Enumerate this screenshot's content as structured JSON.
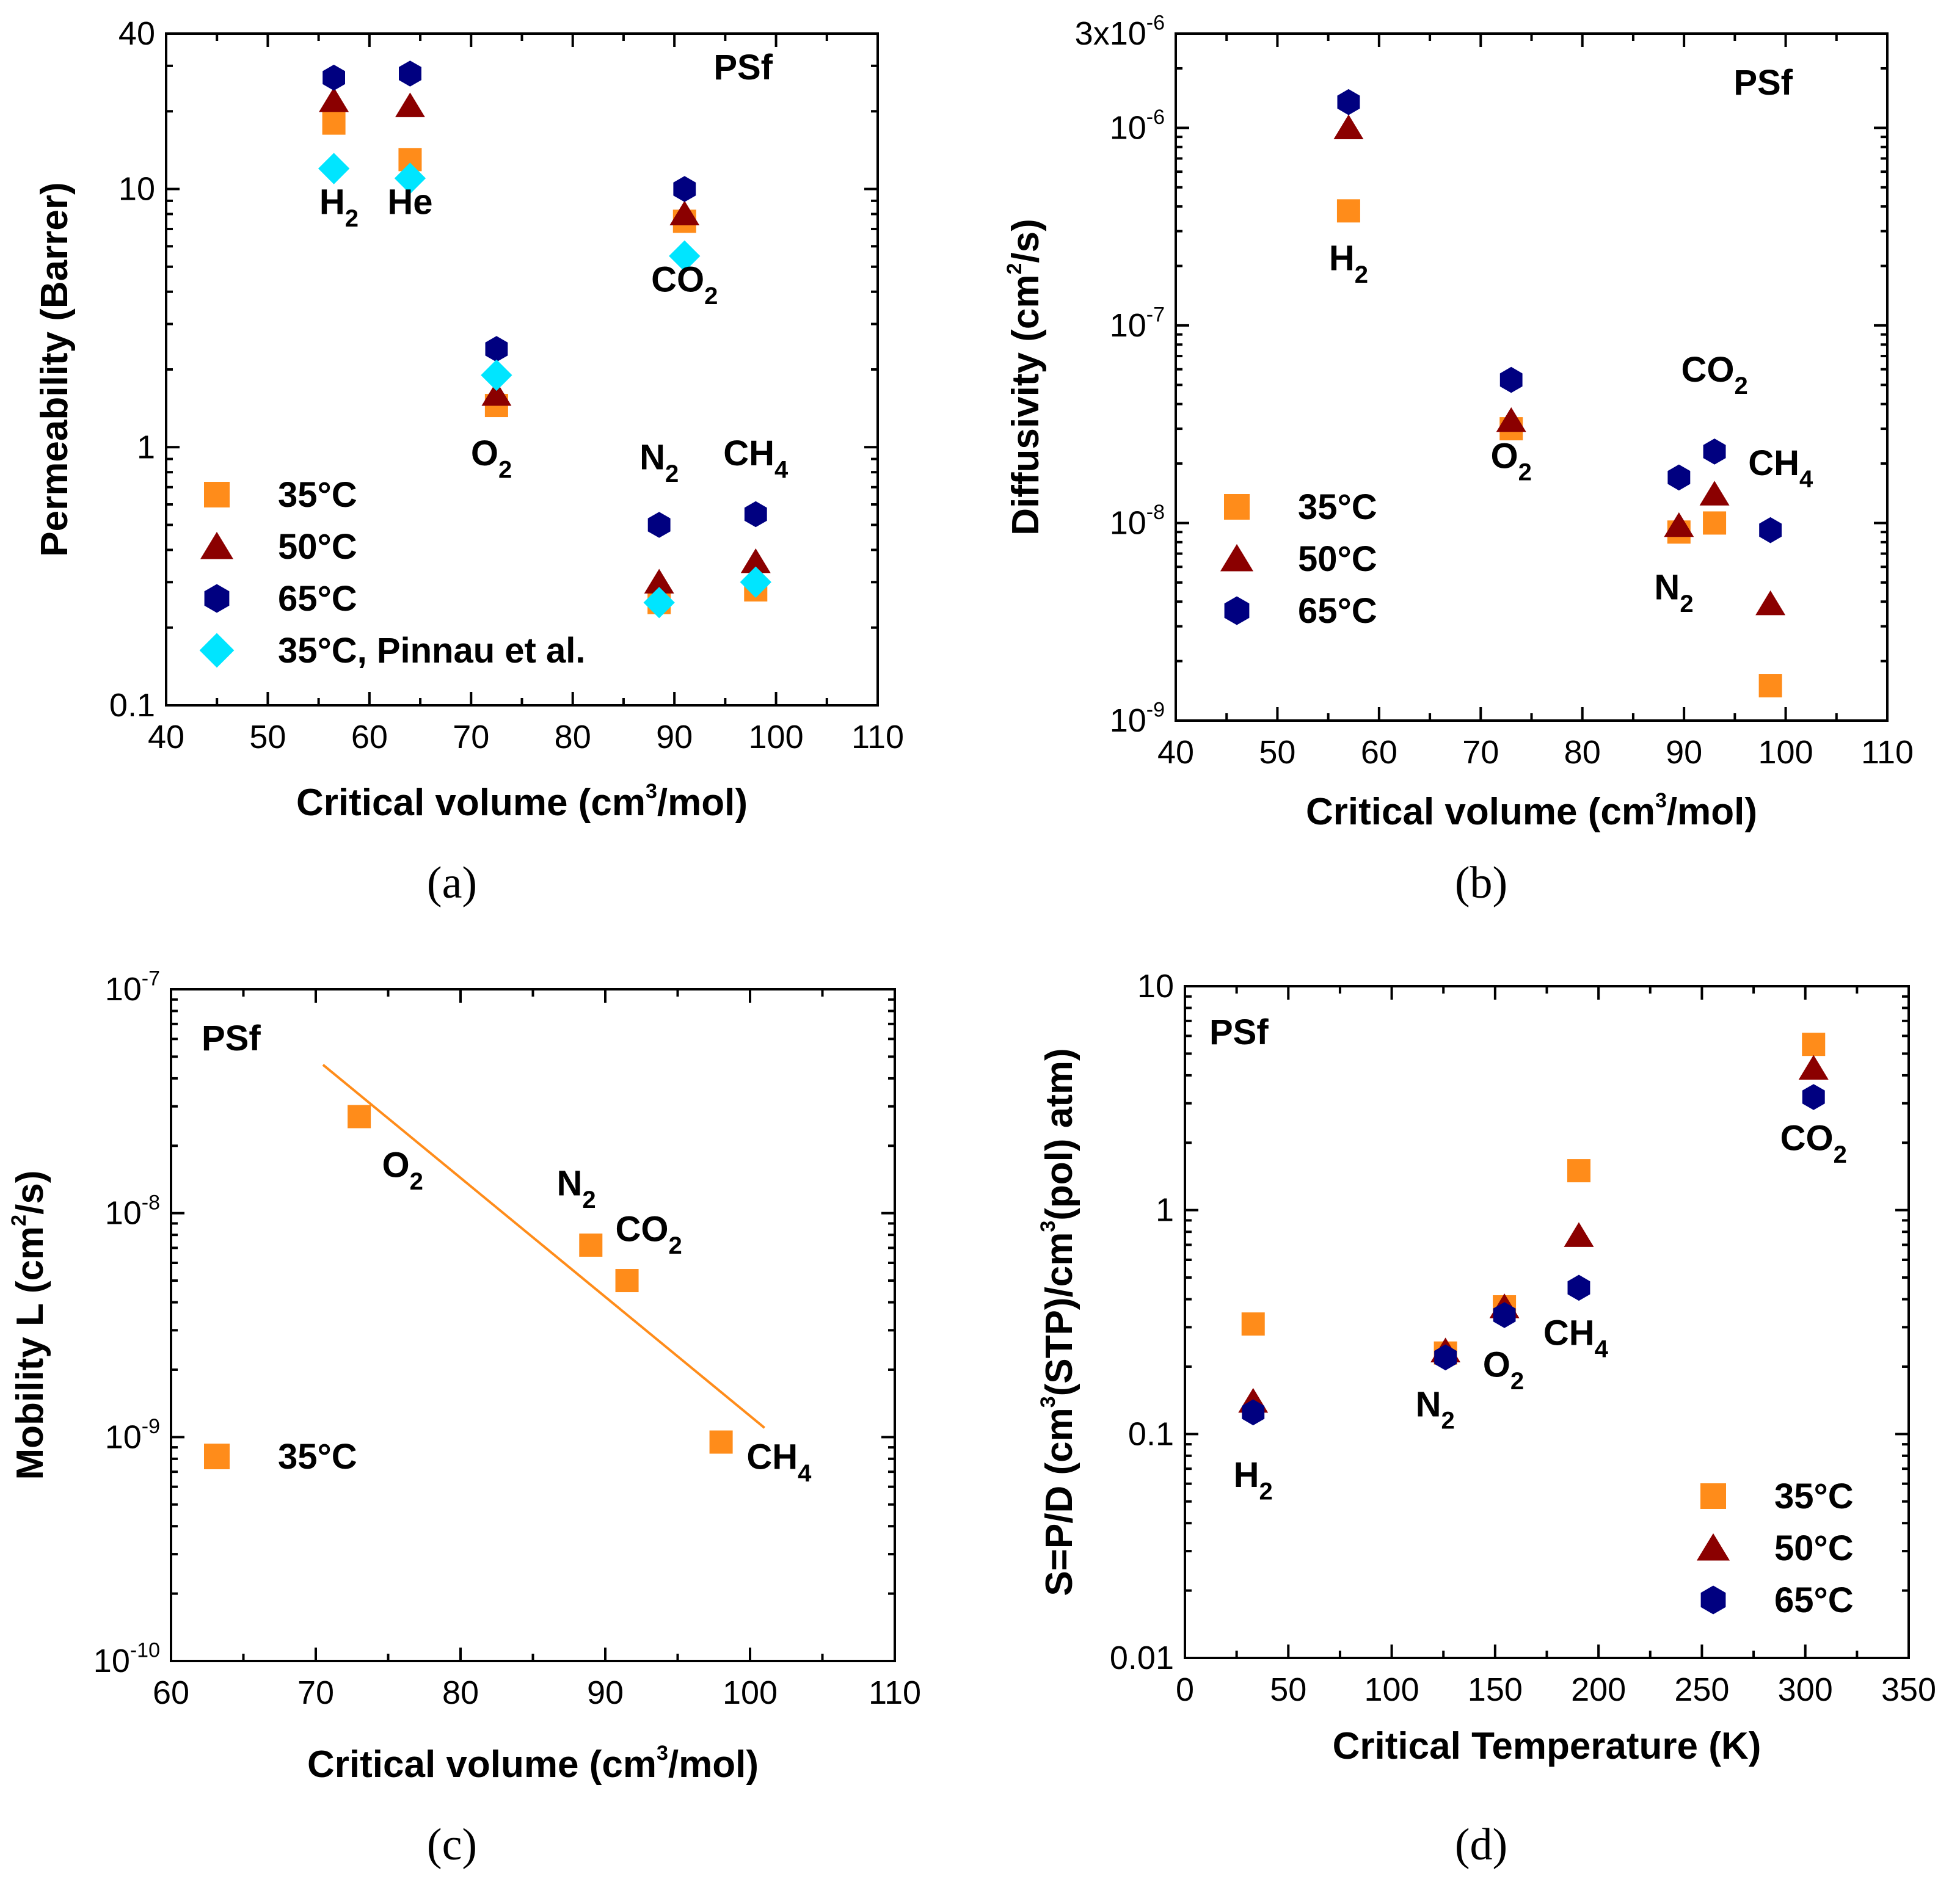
{
  "colors": {
    "t35": "#ff8c1a",
    "t50": "#8b0000",
    "t65": "#000080",
    "pinnau": "#00e5ff",
    "fit_line": "#ff8c1a"
  },
  "chart_data": [
    {
      "id": "a",
      "type": "scatter",
      "caption": "(a)",
      "title_label": "PSf",
      "xlabel": {
        "main": "Critical volume (cm",
        "sup": "3",
        "tail": "/mol)"
      },
      "ylabel": "Permeability (Barrer)",
      "xscale": "linear",
      "yscale": "log",
      "xlim": [
        40,
        110
      ],
      "ylim": [
        0.1,
        40
      ],
      "xticks": [
        40,
        50,
        60,
        70,
        80,
        90,
        100,
        110
      ],
      "xtick_labels": [
        "40",
        "50",
        "60",
        "70",
        "80",
        "90",
        "100",
        "110"
      ],
      "yticks": [
        0.1,
        1,
        10,
        40
      ],
      "ytick_labels": [
        "0.1",
        "1",
        "10",
        "40"
      ],
      "series": [
        {
          "name": "35°C",
          "marker": "square",
          "color_key": "t35",
          "points": [
            [
              56.5,
              18
            ],
            [
              64,
              13
            ],
            [
              72.5,
              1.45
            ],
            [
              88.5,
              0.25
            ],
            [
              91,
              7.5
            ],
            [
              98,
              0.28
            ]
          ]
        },
        {
          "name": "50°C",
          "marker": "triangle",
          "color_key": "t50",
          "points": [
            [
              56.5,
              22
            ],
            [
              64,
              21
            ],
            [
              72.5,
              1.6
            ],
            [
              88.5,
              0.3
            ],
            [
              91,
              8
            ],
            [
              98,
              0.36
            ]
          ]
        },
        {
          "name": "65°C",
          "marker": "hexagon",
          "color_key": "t65",
          "points": [
            [
              56.5,
              27
            ],
            [
              64,
              28
            ],
            [
              72.5,
              2.4
            ],
            [
              88.5,
              0.5
            ],
            [
              91,
              10
            ],
            [
              98,
              0.55
            ]
          ]
        },
        {
          "name": "35°C, Pinnau et al.",
          "marker": "diamond",
          "color_key": "pinnau",
          "points": [
            [
              56.5,
              12
            ],
            [
              64,
              11
            ],
            [
              72.5,
              1.9
            ],
            [
              88.5,
              0.25
            ],
            [
              91,
              5.5
            ],
            [
              98,
              0.3
            ]
          ]
        }
      ],
      "annotations": [
        {
          "base": "H",
          "sub": "2",
          "x": 57,
          "y": 8
        },
        {
          "base": "He",
          "sub": "",
          "x": 64,
          "y": 8
        },
        {
          "base": "CO",
          "sub": "2",
          "x": 91,
          "y": 4.0
        },
        {
          "base": "O",
          "sub": "2",
          "x": 72,
          "y": 0.85
        },
        {
          "base": "N",
          "sub": "2",
          "x": 88.5,
          "y": 0.82
        },
        {
          "base": "CH",
          "sub": "4",
          "x": 98,
          "y": 0.85
        }
      ],
      "legend_position": "lower-left"
    },
    {
      "id": "b",
      "type": "scatter",
      "caption": "(b)",
      "title_label": "PSf",
      "xlabel": {
        "main": "Critical volume (cm",
        "sup": "3",
        "tail": "/mol)"
      },
      "ylabel": {
        "main": "Diffusivity (cm",
        "sup": "2",
        "tail": "/s)"
      },
      "xscale": "linear",
      "yscale": "log",
      "xlim": [
        40,
        110
      ],
      "ylim": [
        1e-09,
        3e-06
      ],
      "xticks": [
        40,
        50,
        60,
        70,
        80,
        90,
        100,
        110
      ],
      "xtick_labels": [
        "40",
        "50",
        "60",
        "70",
        "80",
        "90",
        "100",
        "110"
      ],
      "yticks": [
        1e-09,
        1e-08,
        1e-07,
        1e-06,
        3e-06
      ],
      "ytick_labels": [
        {
          "base": "10",
          "sup": "-9"
        },
        {
          "base": "10",
          "sup": "-8"
        },
        {
          "base": "10",
          "sup": "-7"
        },
        {
          "base": "10",
          "sup": "-6"
        },
        {
          "base": "3x10",
          "sup": "-6"
        }
      ],
      "series": [
        {
          "name": "35°C",
          "marker": "square",
          "color_key": "t35",
          "points": [
            [
              57,
              3.8e-07
            ],
            [
              73,
              3e-08
            ],
            [
              89.5,
              9e-09
            ],
            [
              93,
              1e-08
            ],
            [
              98.5,
              1.5e-09
            ]
          ]
        },
        {
          "name": "50°C",
          "marker": "triangle",
          "color_key": "t50",
          "points": [
            [
              57,
              1e-06
            ],
            [
              73,
              3.3e-08
            ],
            [
              89.5,
              9.7e-09
            ],
            [
              93,
              1.4e-08
            ],
            [
              98.5,
              3.9e-09
            ]
          ]
        },
        {
          "name": "65°C",
          "marker": "hexagon",
          "color_key": "t65",
          "points": [
            [
              57,
              1.35e-06
            ],
            [
              73,
              5.3e-08
            ],
            [
              89.5,
              1.7e-08
            ],
            [
              93,
              2.3e-08
            ],
            [
              98.5,
              9.2e-09
            ]
          ]
        }
      ],
      "annotations": [
        {
          "base": "H",
          "sub": "2",
          "x": 57,
          "y": 1.9e-07
        },
        {
          "base": "O",
          "sub": "2",
          "x": 73,
          "y": 1.9e-08
        },
        {
          "base": "CO",
          "sub": "2",
          "x": 93,
          "y": 5.2e-08
        },
        {
          "base": "CH",
          "sub": "4",
          "x": 99.5,
          "y": 1.75e-08
        },
        {
          "base": "N",
          "sub": "2",
          "x": 89,
          "y": 4.1e-09
        }
      ],
      "legend_position": "lower-left"
    },
    {
      "id": "c",
      "type": "scatter",
      "caption": "(c)",
      "title_label": "PSf",
      "xlabel": {
        "main": "Critical volume (cm",
        "sup": "3",
        "tail": "/mol)"
      },
      "ylabel": {
        "main": "Mobility L (cm",
        "sup": "2",
        "tail": "/s)"
      },
      "xscale": "linear",
      "yscale": "log",
      "xlim": [
        60,
        110
      ],
      "ylim": [
        1e-10,
        1e-07
      ],
      "xticks": [
        60,
        70,
        80,
        90,
        100,
        110
      ],
      "xtick_labels": [
        "60",
        "70",
        "80",
        "90",
        "100",
        "110"
      ],
      "yticks": [
        1e-10,
        1e-09,
        1e-08,
        1e-07
      ],
      "ytick_labels": [
        {
          "base": "10",
          "sup": "-10"
        },
        {
          "base": "10",
          "sup": "-9"
        },
        {
          "base": "10",
          "sup": "-8"
        },
        {
          "base": "10",
          "sup": "-7"
        }
      ],
      "series": [
        {
          "name": "35°C",
          "marker": "square",
          "color_key": "t35",
          "points": [
            [
              73,
              2.7e-08
            ],
            [
              89,
              7.2e-09
            ],
            [
              91.5,
              5e-09
            ],
            [
              98,
              9.5e-10
            ]
          ]
        }
      ],
      "fit_line": {
        "points": [
          [
            70.5,
            4.6e-08
          ],
          [
            101,
            1.1e-09
          ]
        ],
        "color_key": "fit_line"
      },
      "annotations": [
        {
          "base": "O",
          "sub": "2",
          "x": 76,
          "y": 1.45e-08
        },
        {
          "base": "N",
          "sub": "2",
          "x": 88,
          "y": 1.2e-08
        },
        {
          "base": "CO",
          "sub": "2",
          "x": 93,
          "y": 7.5e-09
        },
        {
          "base": "CH",
          "sub": "4",
          "x": 102,
          "y": 7.2e-10
        }
      ],
      "legend_position": "lower-left"
    },
    {
      "id": "d",
      "type": "scatter",
      "caption": "(d)",
      "title_label": "PSf",
      "xlabel": "Critical Temperature (K)",
      "ylabel": "S=P/D (cm³(STP)/cm³(pol) atm)",
      "xscale": "linear",
      "yscale": "log",
      "xlim": [
        0,
        350
      ],
      "ylim": [
        0.01,
        10
      ],
      "xticks": [
        0,
        50,
        100,
        150,
        200,
        250,
        300,
        350
      ],
      "xtick_labels": [
        "0",
        "50",
        "100",
        "150",
        "200",
        "250",
        "300",
        "350"
      ],
      "yticks": [
        0.01,
        0.1,
        1,
        10
      ],
      "ytick_labels": [
        "0.01",
        "0.1",
        "1",
        "10"
      ],
      "series": [
        {
          "name": "35°C",
          "marker": "square",
          "color_key": "t35",
          "points": [
            [
              33,
              0.31
            ],
            [
              126,
              0.23
            ],
            [
              154.5,
              0.37
            ],
            [
              190.5,
              1.5
            ],
            [
              304,
              5.5
            ]
          ]
        },
        {
          "name": "50°C",
          "marker": "triangle",
          "color_key": "t50",
          "points": [
            [
              33,
              0.14
            ],
            [
              126,
              0.235
            ],
            [
              154.5,
              0.37
            ],
            [
              190.5,
              0.77
            ],
            [
              304,
              4.3
            ]
          ]
        },
        {
          "name": "65°C",
          "marker": "hexagon",
          "color_key": "t65",
          "points": [
            [
              33,
              0.125
            ],
            [
              126,
              0.22
            ],
            [
              154.5,
              0.34
            ],
            [
              190.5,
              0.45
            ],
            [
              304,
              3.2
            ]
          ]
        }
      ],
      "annotations": [
        {
          "base": "H",
          "sub": "2",
          "x": 33,
          "y": 0.058
        },
        {
          "base": "N",
          "sub": "2",
          "x": 121,
          "y": 0.12
        },
        {
          "base": "O",
          "sub": "2",
          "x": 154,
          "y": 0.18
        },
        {
          "base": "CH",
          "sub": "4",
          "x": 189,
          "y": 0.25
        },
        {
          "base": "CO",
          "sub": "2",
          "x": 304,
          "y": 1.85
        }
      ],
      "legend_position": "lower-right"
    }
  ]
}
